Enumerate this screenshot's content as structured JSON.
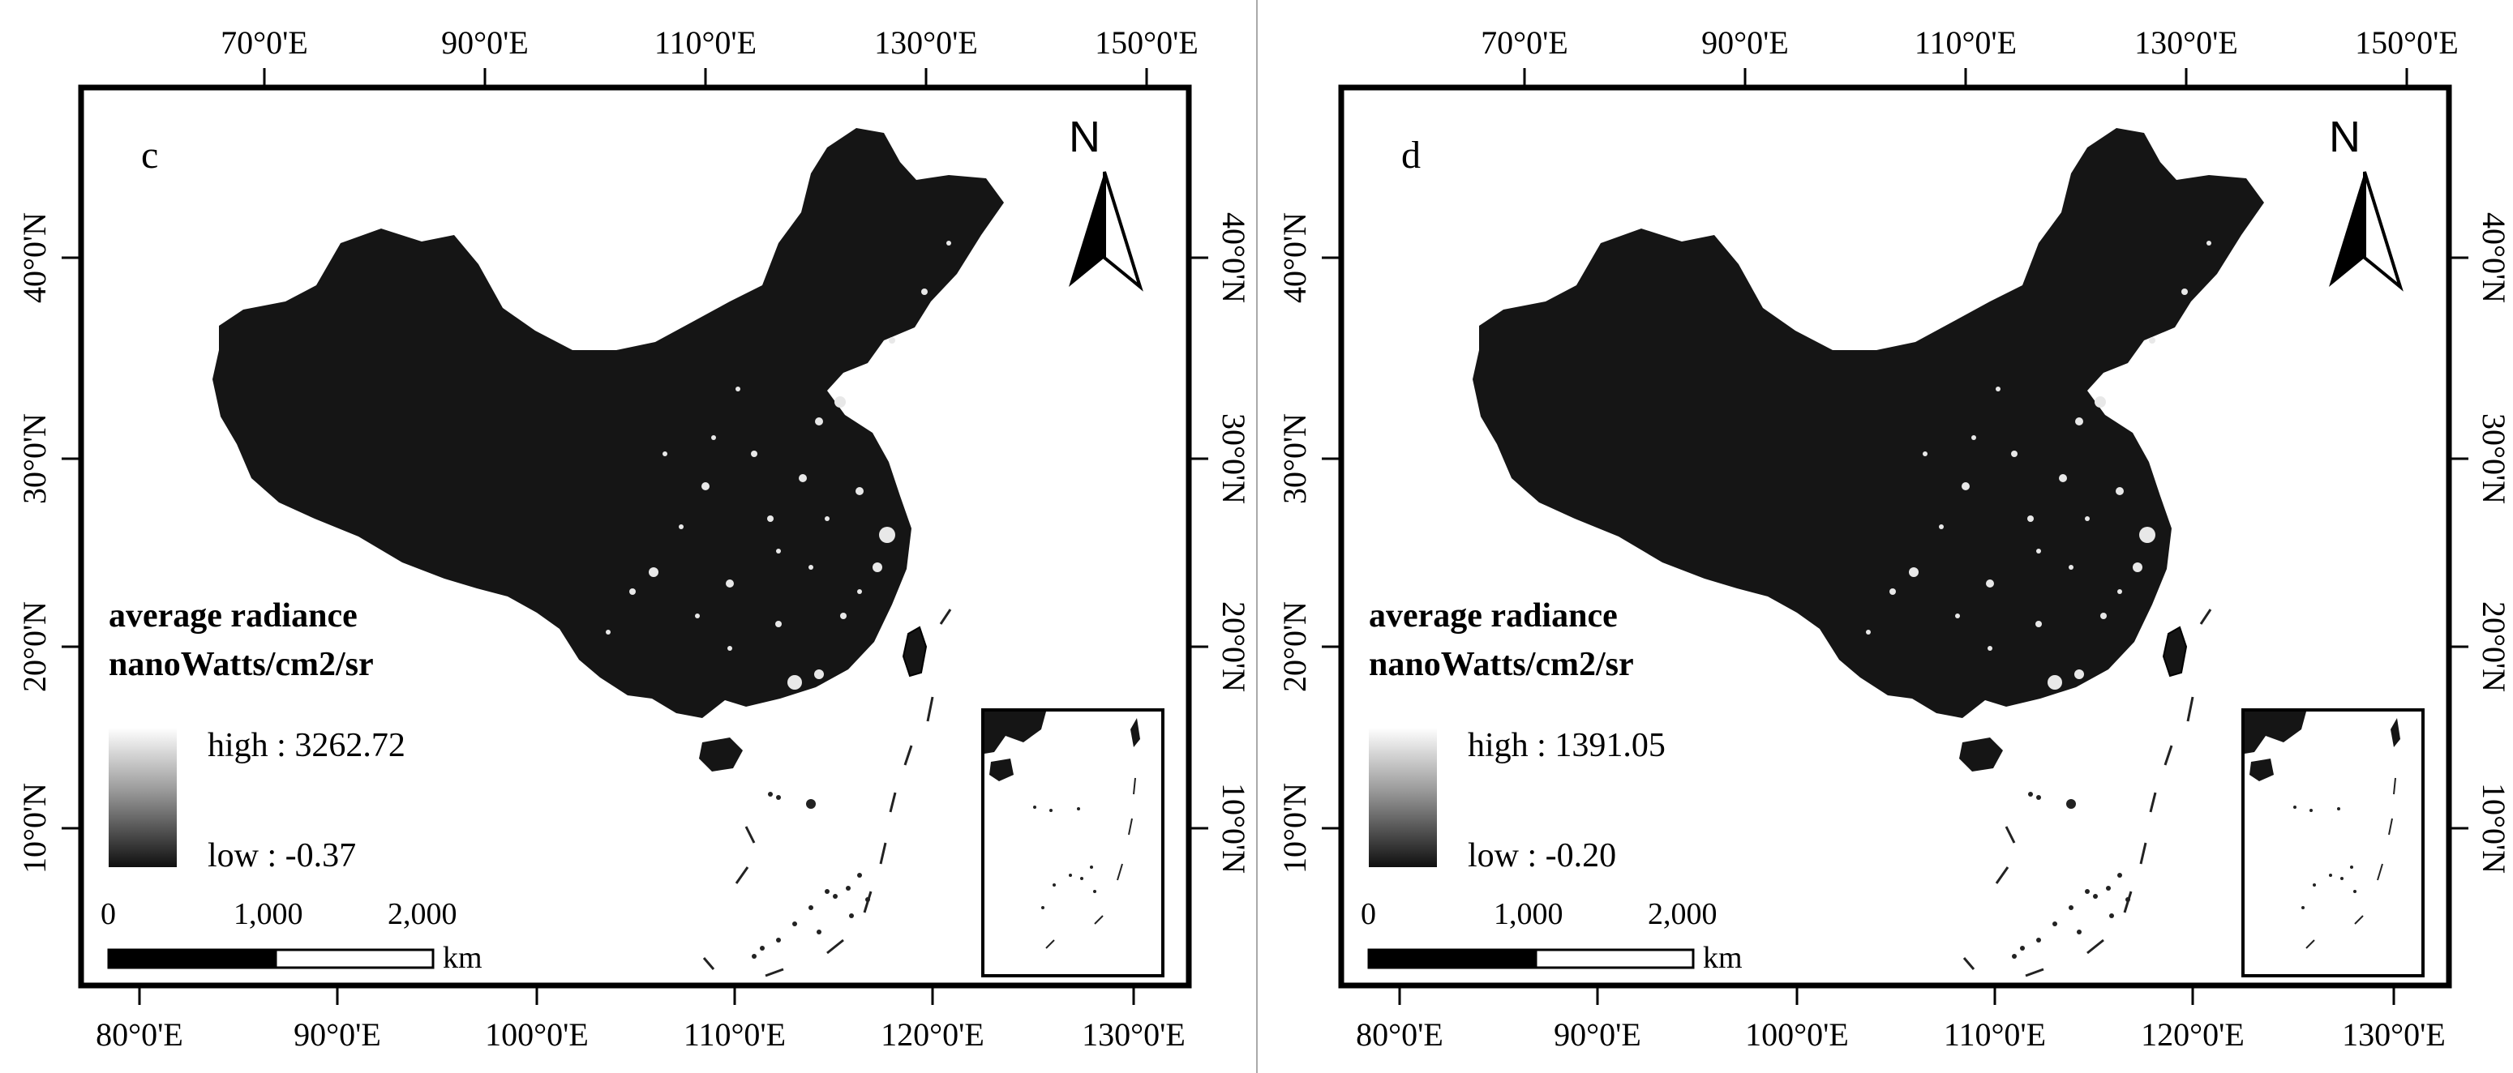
{
  "panels": [
    {
      "letter": "c",
      "legend": {
        "title_line1": "average radiance",
        "title_line2": "nanoWatts/cm2/sr",
        "high": "high : 3262.72",
        "low": "low : -0.37"
      }
    },
    {
      "letter": "d",
      "legend": {
        "title_line1": "average radiance",
        "title_line2": "nanoWatts/cm2/sr",
        "high": "high : 1391.05",
        "low": "low : -0.20"
      }
    }
  ],
  "top_axis_labels": [
    "70°0'E",
    "90°0'E",
    "110°0'E",
    "130°0'E",
    "150°0'E"
  ],
  "bottom_axis_labels": [
    "80°0'E",
    "90°0'E",
    "100°0'E",
    "110°0'E",
    "120°0'E",
    "130°0'E"
  ],
  "left_axis_labels": [
    "40°0'N",
    "30°0'N",
    "20°0'N",
    "10°0'N"
  ],
  "right_axis_labels": [
    "40°0'N",
    "30°0'N",
    "20°0'N",
    "10°0'N"
  ],
  "scale_bar": {
    "ticks": [
      "0",
      "1,000",
      "2,000"
    ],
    "unit": "km"
  },
  "north_arrow_label": "N",
  "colors": {
    "land": "#151515",
    "frame": "#000000",
    "background": "#ffffff",
    "divider": "#aaaaaa"
  }
}
